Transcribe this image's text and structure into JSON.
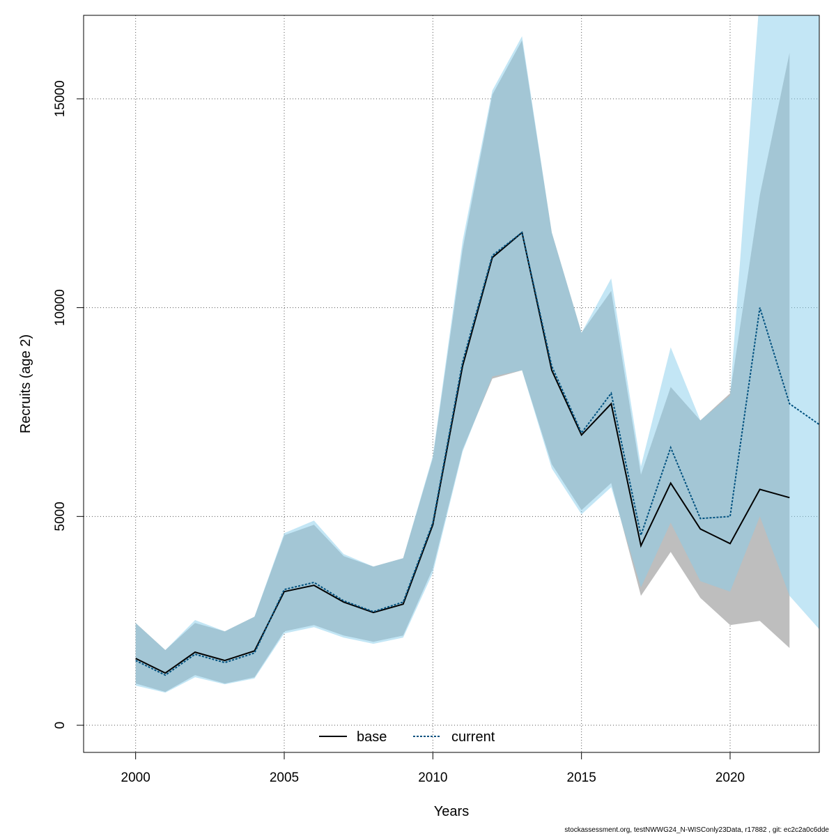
{
  "chart_data": {
    "type": "line",
    "xlabel": "Years",
    "ylabel": "Recruits (age 2)",
    "xlim": [
      1998.25,
      2023
    ],
    "ylim": [
      -650,
      17000
    ],
    "xticks": [
      2000,
      2005,
      2010,
      2015,
      2020
    ],
    "yticks": [
      0,
      5000,
      10000,
      15000
    ],
    "grid": true,
    "legend_position": "bottom-center",
    "colors": {
      "base": "#000000",
      "current": "#00517f",
      "base_band": "#bebebe",
      "current_band": "#87ceeb"
    },
    "series": [
      {
        "name": "base",
        "line_style": "solid",
        "x": [
          2000,
          2001,
          2002,
          2003,
          2004,
          2005,
          2006,
          2007,
          2008,
          2009,
          2010,
          2011,
          2012,
          2013,
          2014,
          2015,
          2016,
          2017,
          2018,
          2019,
          2020,
          2021,
          2022
        ],
        "values": [
          1600,
          1250,
          1750,
          1550,
          1780,
          3200,
          3350,
          2950,
          2700,
          2900,
          4800,
          8600,
          11200,
          11800,
          8500,
          6950,
          7700,
          4300,
          5800,
          4700,
          4350,
          5650,
          5450
        ],
        "lower": [
          1000,
          800,
          1200,
          1000,
          1150,
          2250,
          2400,
          2150,
          2000,
          2150,
          3750,
          6600,
          8300,
          8500,
          6250,
          5150,
          5800,
          3100,
          4150,
          3050,
          2400,
          2500,
          1850
        ],
        "upper": [
          2450,
          1800,
          2450,
          2250,
          2600,
          4550,
          4800,
          4050,
          3800,
          4000,
          6400,
          11400,
          15100,
          16400,
          11800,
          9400,
          10400,
          6000,
          8100,
          7300,
          7950,
          12700,
          16100
        ]
      },
      {
        "name": "current",
        "line_style": "dashed",
        "x": [
          2000,
          2001,
          2002,
          2003,
          2004,
          2005,
          2006,
          2007,
          2008,
          2009,
          2010,
          2011,
          2012,
          2013,
          2014,
          2015,
          2016,
          2017,
          2018,
          2019,
          2020,
          2021,
          2022,
          2023
        ],
        "values": [
          1550,
          1200,
          1700,
          1500,
          1730,
          3250,
          3420,
          2980,
          2720,
          2950,
          4850,
          8700,
          11250,
          11800,
          8600,
          7000,
          7950,
          4550,
          6650,
          4950,
          5000,
          10000,
          7700,
          7200
        ],
        "lower": [
          950,
          780,
          1150,
          980,
          1120,
          2200,
          2350,
          2100,
          1950,
          2100,
          3650,
          6550,
          8350,
          8500,
          6150,
          5050,
          5700,
          3300,
          4850,
          3450,
          3200,
          5000,
          3100,
          2300
        ],
        "upper": [
          2450,
          1800,
          2520,
          2250,
          2600,
          4600,
          4900,
          4100,
          3800,
          4000,
          6450,
          11600,
          15200,
          16500,
          11800,
          9400,
          10700,
          6200,
          9050,
          7300,
          7900,
          17500,
          17500,
          17500
        ]
      }
    ]
  },
  "footer_text": "stockassessment.org, testNWWG24_N-WISConly23Data, r17882 , git: ec2c2a0c6dde"
}
